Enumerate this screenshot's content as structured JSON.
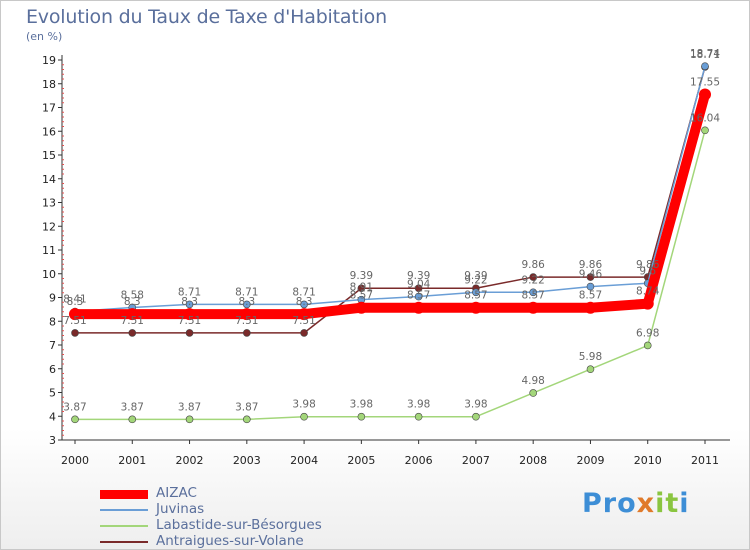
{
  "title": "Evolution du Taux de Taxe d'Habitation",
  "subtitle": "(en %)",
  "logo": {
    "text": "Proxiti"
  },
  "chart_data": {
    "type": "line",
    "title": "Evolution du Taux de Taxe d'Habitation",
    "ylabel": "(en %)",
    "xlabel": "",
    "ylim": [
      3,
      19
    ],
    "yticks": [
      3,
      4,
      5,
      6,
      7,
      8,
      9,
      10,
      11,
      12,
      13,
      14,
      15,
      16,
      17,
      18,
      19
    ],
    "categories": [
      "2000",
      "2001",
      "2002",
      "2003",
      "2004",
      "2005",
      "2006",
      "2007",
      "2008",
      "2009",
      "2010",
      "2011"
    ],
    "grid": false,
    "legend_position": "bottom-left",
    "series": [
      {
        "name": "AIZAC",
        "color": "#ff0000",
        "values": [
          8.3,
          8.3,
          8.3,
          8.3,
          8.3,
          8.57,
          8.57,
          8.57,
          8.57,
          8.57,
          8.74,
          17.55
        ],
        "labels": [
          "8.3",
          "8.3",
          "8.3",
          "8.3",
          "8.3",
          "8.57",
          "8.57",
          "8.57",
          "8.57",
          "8.57",
          "8.74",
          "17.55"
        ]
      },
      {
        "name": "Juvinas",
        "color": "#6a9ed6",
        "values": [
          8.41,
          8.58,
          8.71,
          8.71,
          8.71,
          8.91,
          9.04,
          9.22,
          9.22,
          9.46,
          9.6,
          18.74
        ],
        "labels": [
          "8.41",
          "8.58",
          "8.71",
          "8.71",
          "8.71",
          "8.91",
          "9.04",
          "9.22",
          "9.22",
          "9.46",
          "9.6",
          "18.74"
        ]
      },
      {
        "name": "Labastide-sur-Bésorgues",
        "color": "#a3d67a",
        "values": [
          3.87,
          3.87,
          3.87,
          3.87,
          3.98,
          3.98,
          3.98,
          3.98,
          4.98,
          5.98,
          6.98,
          16.04
        ],
        "labels": [
          "3.87",
          "3.87",
          "3.87",
          "3.87",
          "3.98",
          "3.98",
          "3.98",
          "3.98",
          "4.98",
          "5.98",
          "6.98",
          "16.04"
        ]
      },
      {
        "name": "Antraigues-sur-Volane",
        "color": "#7a2a2a",
        "values": [
          7.51,
          7.51,
          7.51,
          7.51,
          7.51,
          9.39,
          9.39,
          9.39,
          9.86,
          9.86,
          9.86,
          18.71
        ],
        "labels": [
          "7.51",
          "7.51",
          "7.51",
          "7.51",
          "7.51",
          "9.39",
          "9.39",
          "9.39",
          "9.86",
          "9.86",
          "9.86",
          "18.71"
        ]
      }
    ]
  }
}
